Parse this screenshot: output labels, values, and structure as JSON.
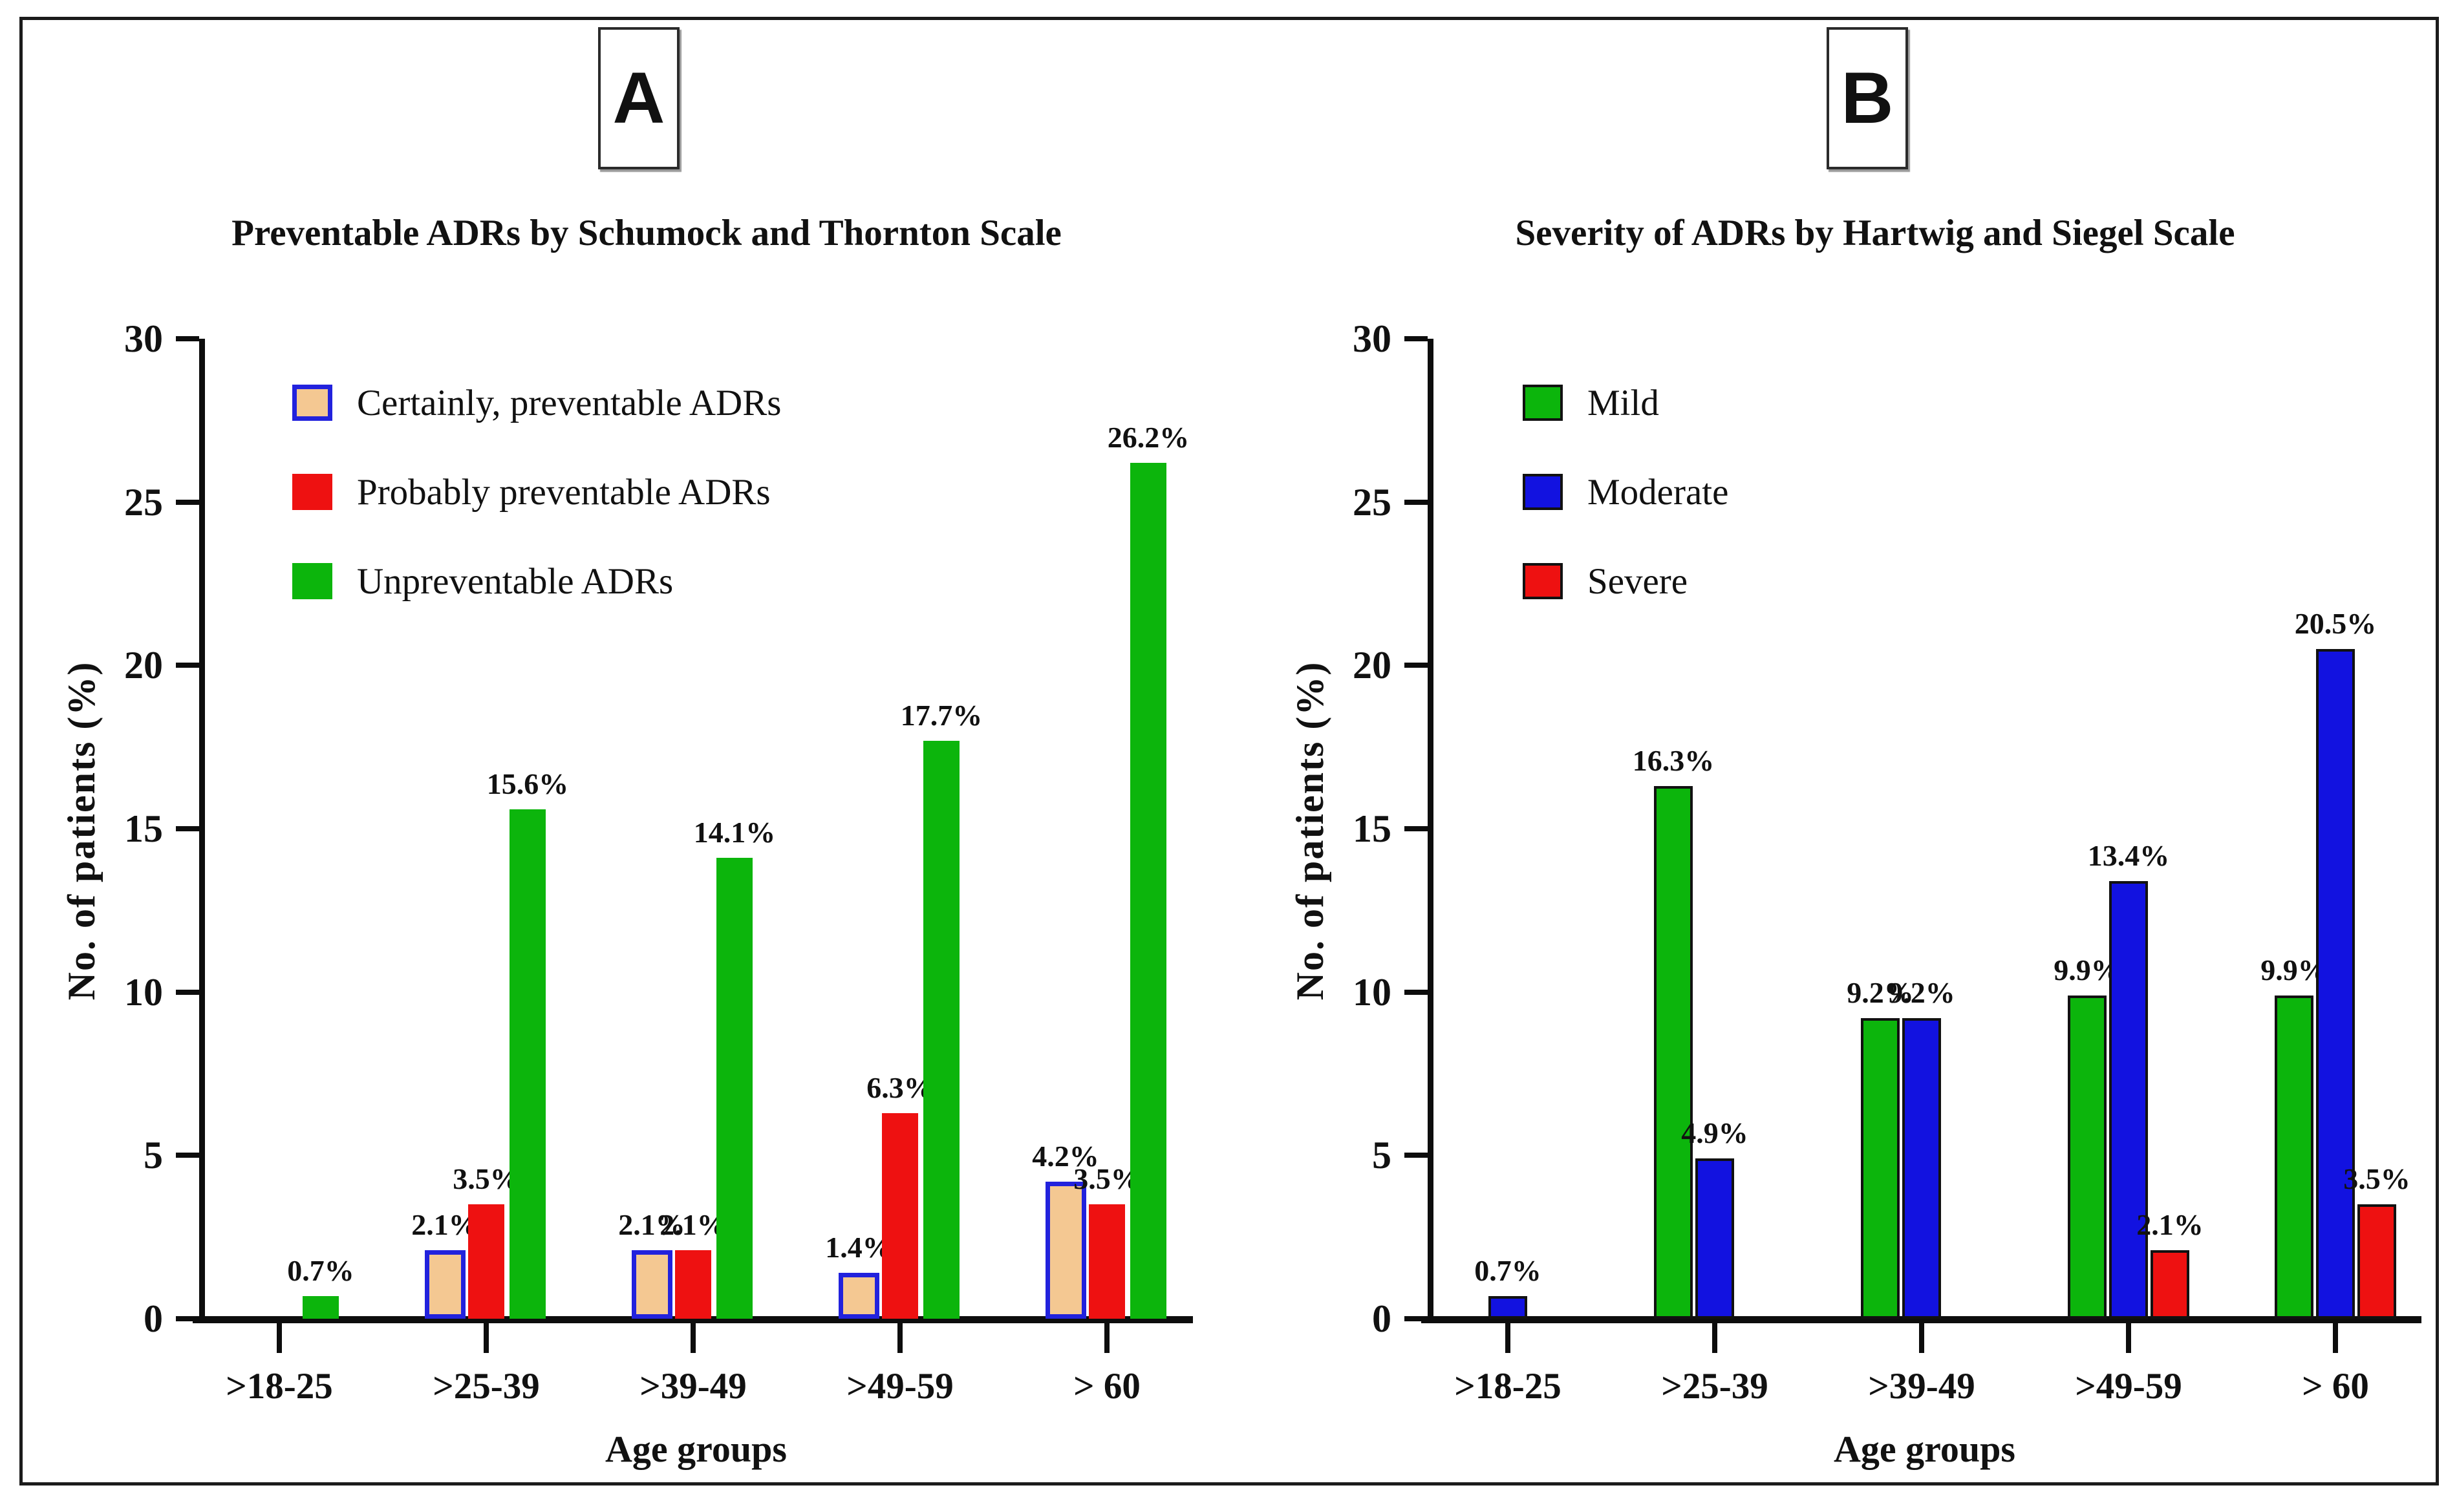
{
  "figure": {
    "background": "#ffffff",
    "border_color": "#1b1b1b"
  },
  "panels": [
    {
      "letter": "A",
      "title": "Preventable ADRs by Schumock and Thornton Scale",
      "y_axis": {
        "label": "No. of patients (%)"
      },
      "x_axis": {
        "label": "Age groups"
      },
      "legend": [
        {
          "label": "Certainly, preventable ADRs"
        },
        {
          "label": "Probably preventable ADRs"
        },
        {
          "label": "Unpreventable ADRs"
        }
      ]
    },
    {
      "letter": "B",
      "title": "Severity of ADRs by Hartwig and Siegel Scale",
      "y_axis": {
        "label": "No. of patients (%)"
      },
      "x_axis": {
        "label": "Age groups"
      },
      "legend": [
        {
          "label": "Mild"
        },
        {
          "label": "Moderate"
        },
        {
          "label": "Severe"
        }
      ]
    }
  ],
  "chart_data": [
    {
      "type": "bar",
      "title": "Preventable ADRs by Schumock and Thornton Scale",
      "xlabel": "Age groups",
      "ylabel": "No. of patients (%)",
      "ylim": [
        0,
        30
      ],
      "yticks": [
        0,
        5,
        10,
        15,
        20,
        25,
        30
      ],
      "grid": false,
      "legend_position": "upper-left-inside",
      "bar_label_suffix": "%",
      "categories": [
        ">18-25",
        ">25-39",
        ">39-49",
        ">49-59",
        "> 60"
      ],
      "series": [
        {
          "name": "Certainly, preventable ADRs",
          "color": "#f4c892",
          "border_color": "#2222dd",
          "border_px": 7,
          "values": [
            0,
            2.1,
            2.1,
            1.4,
            4.2
          ]
        },
        {
          "name": "Probably preventable ADRs",
          "color": "#ee1111",
          "border_color": null,
          "border_px": 0,
          "values": [
            0,
            3.5,
            2.1,
            6.3,
            3.5
          ]
        },
        {
          "name": "Unpreventable ADRs",
          "color": "#0cb50c",
          "border_color": null,
          "border_px": 0,
          "values": [
            0.7,
            15.6,
            14.1,
            17.7,
            26.2
          ]
        }
      ]
    },
    {
      "type": "bar",
      "title": "Severity of ADRs by Hartwig and Siegel Scale",
      "xlabel": "Age groups",
      "ylabel": "No. of patients (%)",
      "ylim": [
        0,
        30
      ],
      "yticks": [
        0,
        5,
        10,
        15,
        20,
        25,
        30
      ],
      "grid": false,
      "legend_position": "upper-left-inside",
      "bar_label_suffix": "%",
      "categories": [
        ">18-25",
        ">25-39",
        ">39-49",
        ">49-59",
        "> 60"
      ],
      "series": [
        {
          "name": "Mild",
          "color": "#0cb50c",
          "border_color": "#111111",
          "border_px": 4,
          "values": [
            0,
            16.3,
            9.2,
            9.9,
            9.9
          ]
        },
        {
          "name": "Moderate",
          "color": "#1212e0",
          "border_color": "#111111",
          "border_px": 4,
          "values": [
            0.7,
            4.9,
            9.2,
            13.4,
            20.5
          ]
        },
        {
          "name": "Severe",
          "color": "#ee1111",
          "border_color": "#111111",
          "border_px": 4,
          "values": [
            0,
            0,
            0,
            2.1,
            3.5
          ]
        }
      ]
    }
  ]
}
